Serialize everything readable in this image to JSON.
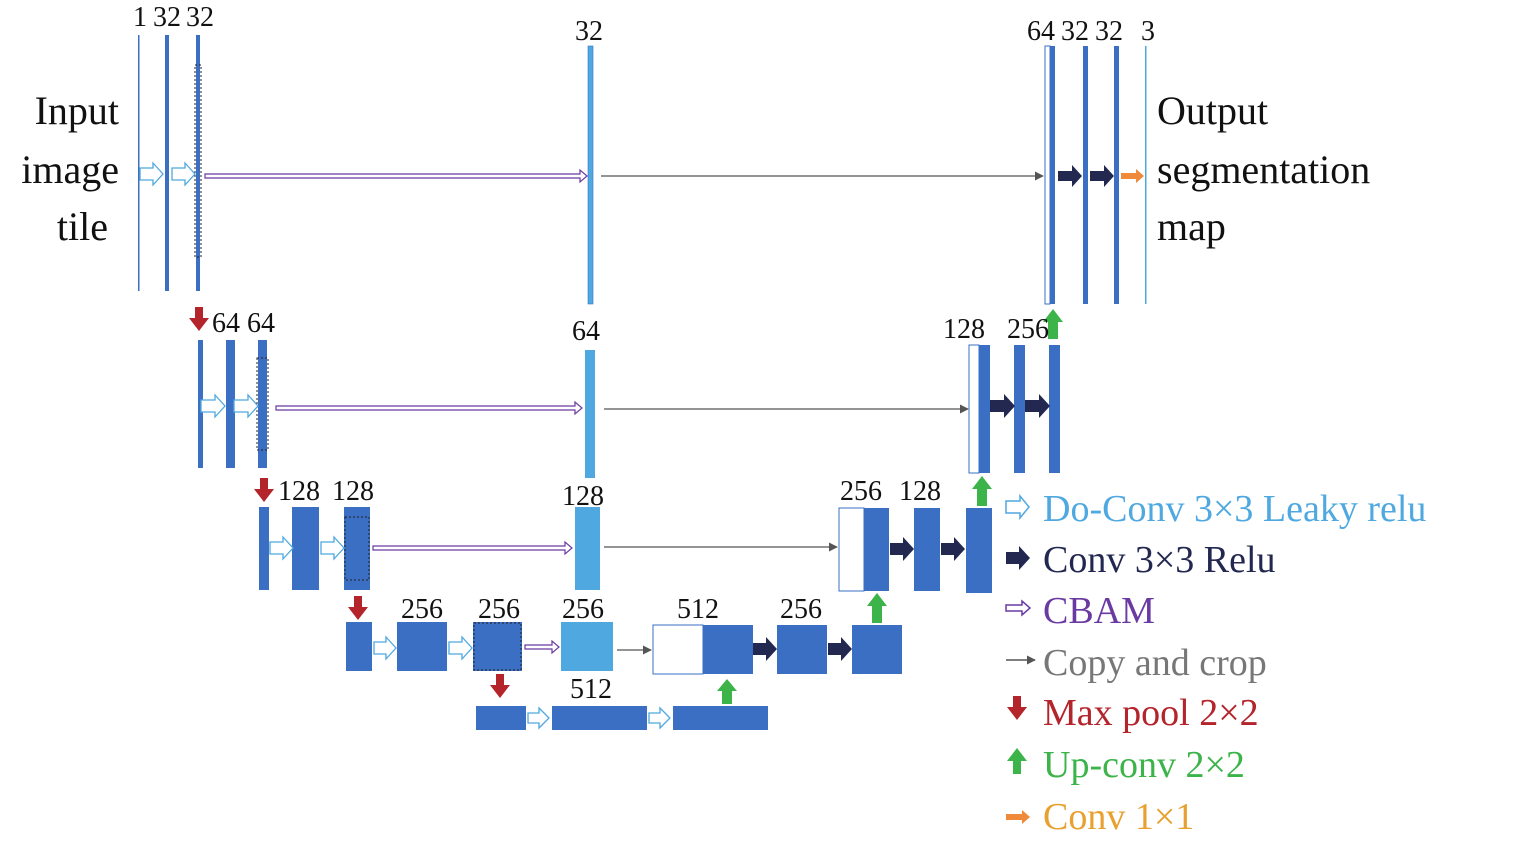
{
  "colors": {
    "block": "#3a6fc4",
    "light_block": "#4fa9e0",
    "cbam": "#6a3aa2",
    "copy": "#555555",
    "relu": "#232850",
    "maxpool": "#b3242b",
    "upconv": "#3cb44a",
    "conv1": "#ee8a3a",
    "legend_doconv": "#4fa9e0",
    "legend_relu": "#232850",
    "legend_cbam": "#6a3aa2",
    "legend_copy": "#777777",
    "legend_maxpool": "#b3242b",
    "legend_upconv": "#3cb44a",
    "legend_conv1": "#e8a030"
  },
  "input_label": [
    "Input",
    "image",
    "tile"
  ],
  "output_label": [
    "Output",
    "segmentation",
    "map"
  ],
  "channel_labels": {
    "l1_in_1": "1",
    "l1_in_2": "32",
    "l1_in_3": "32",
    "l1_mid": "32",
    "l1_out_1": "64",
    "l1_out_2": "32",
    "l1_out_3": "32",
    "l1_out_4": "3",
    "l2_in_1": "64",
    "l2_in_2": "64",
    "l2_mid": "64",
    "l2_out_1": "128",
    "l2_out_2": "256",
    "l3_in_1": "128",
    "l3_in_2": "128",
    "l3_mid": "128",
    "l3_out_1": "256",
    "l3_out_2": "128",
    "l4_in_1": "256",
    "l4_in_2": "256",
    "l4_mid": "256",
    "l4_out_1": "512",
    "l4_out_2": "256",
    "l5": "512"
  },
  "legend": [
    {
      "icon": "doconv-arrow-icon",
      "label": "Do-Conv 3×3 Leaky relu",
      "color_key": "legend_doconv"
    },
    {
      "icon": "conv-relu-arrow-icon",
      "label": "Conv 3×3 Relu",
      "color_key": "legend_relu"
    },
    {
      "icon": "cbam-arrow-icon",
      "label": "CBAM",
      "color_key": "legend_cbam"
    },
    {
      "icon": "copy-crop-arrow-icon",
      "label": "Copy and crop",
      "color_key": "legend_copy"
    },
    {
      "icon": "maxpool-arrow-icon",
      "label": "Max pool 2×2",
      "color_key": "legend_maxpool"
    },
    {
      "icon": "upconv-arrow-icon",
      "label": "Up-conv 2×2",
      "color_key": "legend_upconv"
    },
    {
      "icon": "conv1x1-arrow-icon",
      "label": "Conv 1×1",
      "color_key": "legend_conv1"
    }
  ]
}
